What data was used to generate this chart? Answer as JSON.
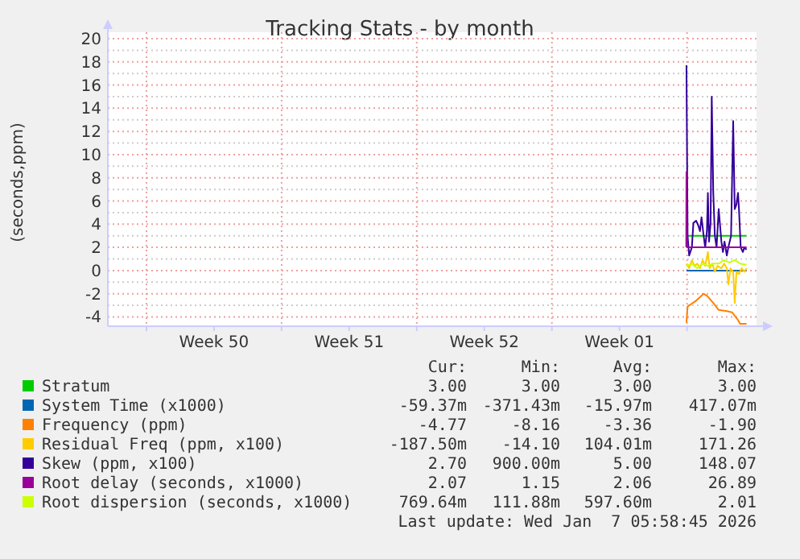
{
  "chart_data": {
    "type": "line",
    "title": "Tracking Stats - by month",
    "ylabel": "(seconds,ppm)",
    "xlim": [
      "2025-12-06",
      "2026-01-08T14:24"
    ],
    "xticks": [
      {
        "value": "2025-12-08",
        "label": null
      },
      {
        "value": "2025-12-11T12:00",
        "label": "Week 50"
      },
      {
        "value": "2025-12-15",
        "label": null
      },
      {
        "value": "2025-12-18T12:00",
        "label": "Week 51"
      },
      {
        "value": "2025-12-22",
        "label": null
      },
      {
        "value": "2025-12-25T12:00",
        "label": "Week 52"
      },
      {
        "value": "2025-12-29",
        "label": null
      },
      {
        "value": "2026-01-01T12:00",
        "label": "Week 01"
      },
      {
        "value": "2026-01-05",
        "label": null
      }
    ],
    "ylim": [
      -4.8,
      20
    ],
    "yticks": [
      -4,
      {
        "value": -3,
        "label": null
      },
      -2,
      {
        "value": -1,
        "label": null
      },
      0,
      {
        "value": 1,
        "label": null
      },
      2,
      {
        "value": 3,
        "label": null
      },
      4,
      {
        "value": 5,
        "label": null
      },
      6,
      {
        "value": 7,
        "label": null
      },
      8,
      {
        "value": 9,
        "label": null
      },
      10,
      {
        "value": 11,
        "label": null
      },
      12,
      {
        "value": 13,
        "label": null
      },
      14,
      {
        "value": 15,
        "label": null
      },
      16,
      {
        "value": 17,
        "label": null
      },
      18,
      {
        "value": 19,
        "label": null
      },
      20
    ],
    "grid": true,
    "legend": "bottom",
    "marker": "none",
    "line_style": "solid",
    "series": [
      {
        "name": "Stratum",
        "color": "#00cc00",
        "x": [
          "2026-01-04T23:17",
          "2026-01-08T01:55"
        ],
        "values": [
          3,
          3
        ]
      },
      {
        "name": "System Time (x1000)",
        "color": "#0066b3",
        "x": [
          "2026-01-04T23:17",
          "2026-01-06T00:00",
          "2026-01-07T00:00",
          "2026-01-08T01:55"
        ],
        "values": [
          0,
          0,
          0,
          0
        ]
      },
      {
        "name": "Frequency (ppm)",
        "color": "#ff8000",
        "x": [
          "2026-01-04T23:17",
          "2026-01-05T00:43",
          "2026-01-05T11:17",
          "2026-01-05T20:38",
          "2026-01-06T01:12",
          "2026-01-06T08:38",
          "2026-01-06T15:22",
          "2026-01-07T01:26",
          "2026-01-07T07:55",
          "2026-01-07T14:38",
          "2026-01-07T18:00",
          "2026-01-08T01:55"
        ],
        "values": [
          -4.5,
          -3.1,
          -2.6,
          -2.0,
          -2.2,
          -2.8,
          -3.4,
          -3.5,
          -3.6,
          -4.2,
          -4.6,
          -4.6
        ]
      },
      {
        "name": "Residual Freq (ppm, x100)",
        "color": "#ffcc00",
        "x": [
          "2026-01-04T23:17",
          "2026-01-05T02:38",
          "2026-01-05T06:00",
          "2026-01-05T09:22",
          "2026-01-05T12:43",
          "2026-01-05T16:05",
          "2026-01-05T19:26",
          "2026-01-05T22:34",
          "2026-01-06T01:55",
          "2026-01-06T04:05",
          "2026-01-06T07:26",
          "2026-01-06T10:34",
          "2026-01-06T13:55",
          "2026-01-06T18:43",
          "2026-01-06T22:05",
          "2026-01-07T01:26",
          "2026-01-07T03:22",
          "2026-01-07T06:00",
          "2026-01-07T09:22",
          "2026-01-07T11:17",
          "2026-01-07T13:26",
          "2026-01-07T16:34",
          "2026-01-07T19:55",
          "2026-01-07T23:17",
          "2026-01-08T01:55"
        ],
        "values": [
          0.6,
          0.2,
          0.9,
          0.4,
          0.6,
          0.2,
          0.9,
          0.4,
          1.6,
          0.2,
          0.6,
          -0.1,
          0.4,
          0.2,
          0.6,
          0.2,
          -1.2,
          0.2,
          -0.1,
          -2.8,
          -0.1,
          -0.3,
          0.2,
          -0.1,
          0.2
        ]
      },
      {
        "name": "Skew (ppm, x100)",
        "color": "#330099",
        "x": [
          "2026-01-04T23:17",
          "2026-01-05T00:43",
          "2026-01-05T02:38",
          "2026-01-05T06:00",
          "2026-01-05T07:55",
          "2026-01-05T11:17",
          "2026-01-05T13:55",
          "2026-01-05T16:05",
          "2026-01-05T18:00",
          "2026-01-05T20:38",
          "2026-01-05T22:34",
          "2026-01-06T00:43",
          "2026-01-06T01:55",
          "2026-01-06T03:22",
          "2026-01-06T05:17",
          "2026-01-06T06:43",
          "2026-01-06T08:38",
          "2026-01-06T10:34",
          "2026-01-06T12:43",
          "2026-01-06T15:22",
          "2026-01-06T18:43",
          "2026-01-06T20:38",
          "2026-01-06T22:34",
          "2026-01-07T01:26",
          "2026-01-07T03:22",
          "2026-01-07T06:43",
          "2026-01-07T09:22",
          "2026-01-07T11:17",
          "2026-01-07T13:26",
          "2026-01-07T15:22",
          "2026-01-07T16:34",
          "2026-01-07T18:43",
          "2026-01-07T21:22",
          "2026-01-07T23:17",
          "2026-01-08T01:55"
        ],
        "values": [
          17.7,
          3.0,
          1.3,
          2.0,
          4.1,
          4.3,
          3.9,
          3.4,
          4.6,
          3.0,
          2.0,
          3.4,
          6.7,
          2.5,
          4.1,
          15.0,
          6.7,
          3.0,
          2.0,
          5.3,
          2.5,
          1.6,
          2.5,
          1.3,
          2.0,
          3.0,
          12.9,
          5.3,
          5.7,
          6.7,
          5.3,
          2.0,
          1.6,
          2.0,
          1.8
        ]
      },
      {
        "name": "Root delay (seconds, x1000)",
        "color": "#990099",
        "x": [
          "2026-01-04T23:02",
          "2026-01-04T23:17",
          "2026-01-05T00:00",
          "2026-01-08T01:55"
        ],
        "values": [
          2.0,
          8.5,
          2.0,
          2.0
        ]
      },
      {
        "name": "Root dispersion (seconds, x1000)",
        "color": "#ccff00",
        "x": [
          "2026-01-04T23:17",
          "2026-01-05T06:00",
          "2026-01-05T12:43",
          "2026-01-05T19:26",
          "2026-01-06T01:55",
          "2026-01-06T08:38",
          "2026-01-06T15:22",
          "2026-01-06T22:05",
          "2026-01-07T04:34",
          "2026-01-07T11:17",
          "2026-01-07T18:00",
          "2026-01-08T01:55"
        ],
        "values": [
          0.4,
          0.6,
          0.2,
          0.6,
          0.4,
          0.6,
          0.6,
          0.9,
          0.7,
          0.9,
          0.6,
          0.5
        ]
      }
    ],
    "annotations": [
      "Cur:",
      "Min:",
      "Avg:",
      "Max:",
      "3.00",
      "3.00",
      "3.00",
      "3.00",
      "-59.37m",
      "-371.43m",
      "-15.97m",
      "417.07m",
      "-4.77",
      "-8.16",
      "-3.36",
      "-1.90",
      "-187.50m",
      "-14.10",
      "104.01m",
      "171.26",
      "2.70",
      "900.00m",
      "5.00",
      "148.07",
      "2.07",
      "1.15",
      "2.06",
      "26.89",
      "769.64m",
      "111.88m",
      "597.60m",
      "2.01",
      "Last update: Wed Jan  7 05:58:45 2026"
    ]
  }
}
